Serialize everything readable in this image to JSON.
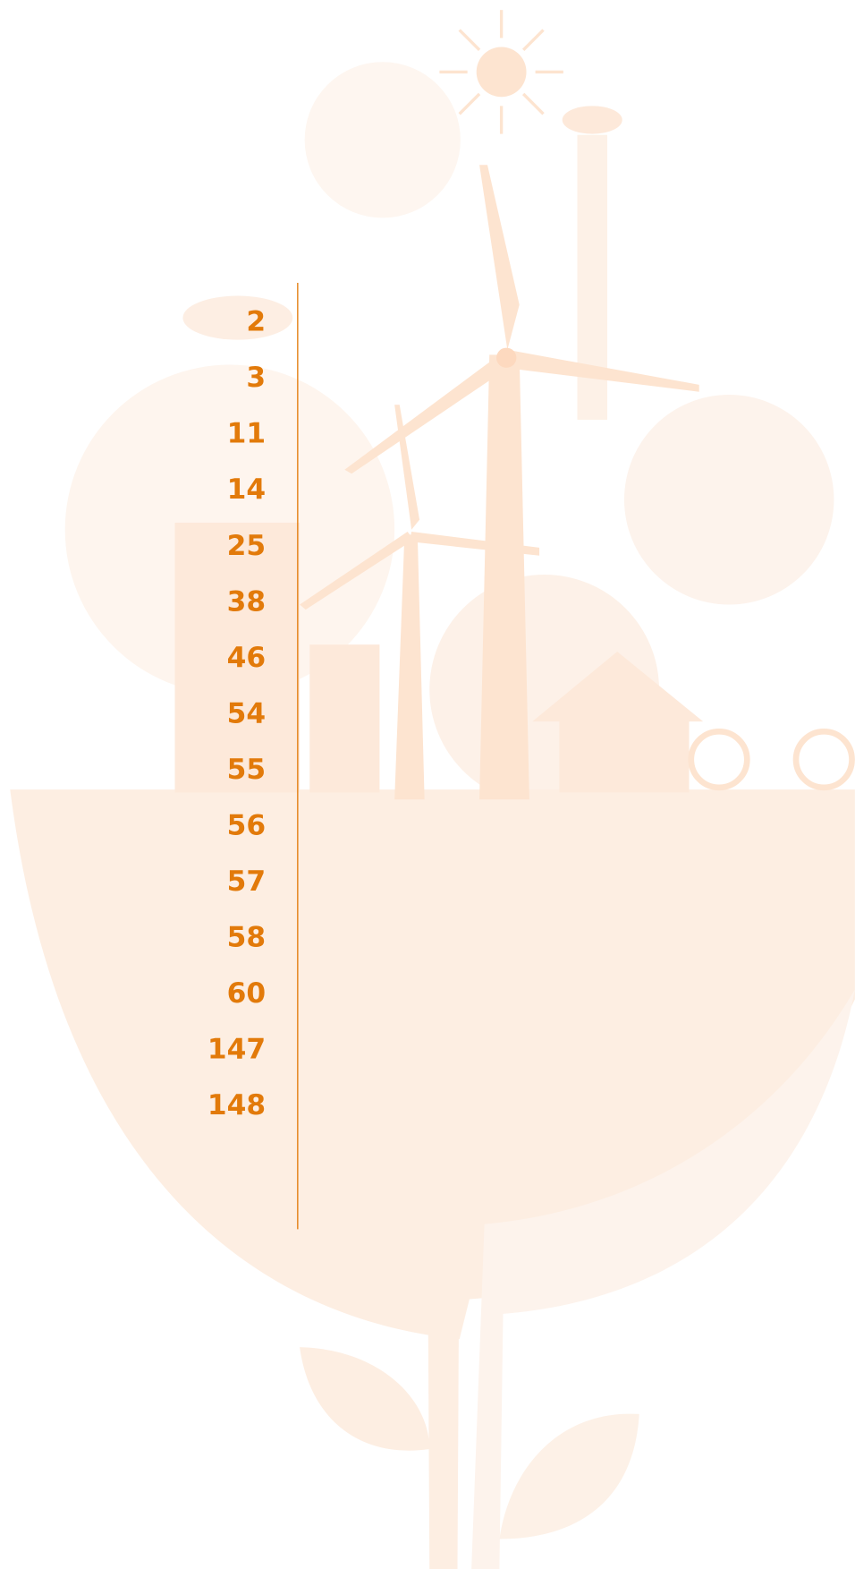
{
  "page_numbers": [
    2,
    3,
    11,
    14,
    25,
    38,
    46,
    54,
    55,
    56,
    57,
    58,
    60,
    147,
    148
  ]
}
